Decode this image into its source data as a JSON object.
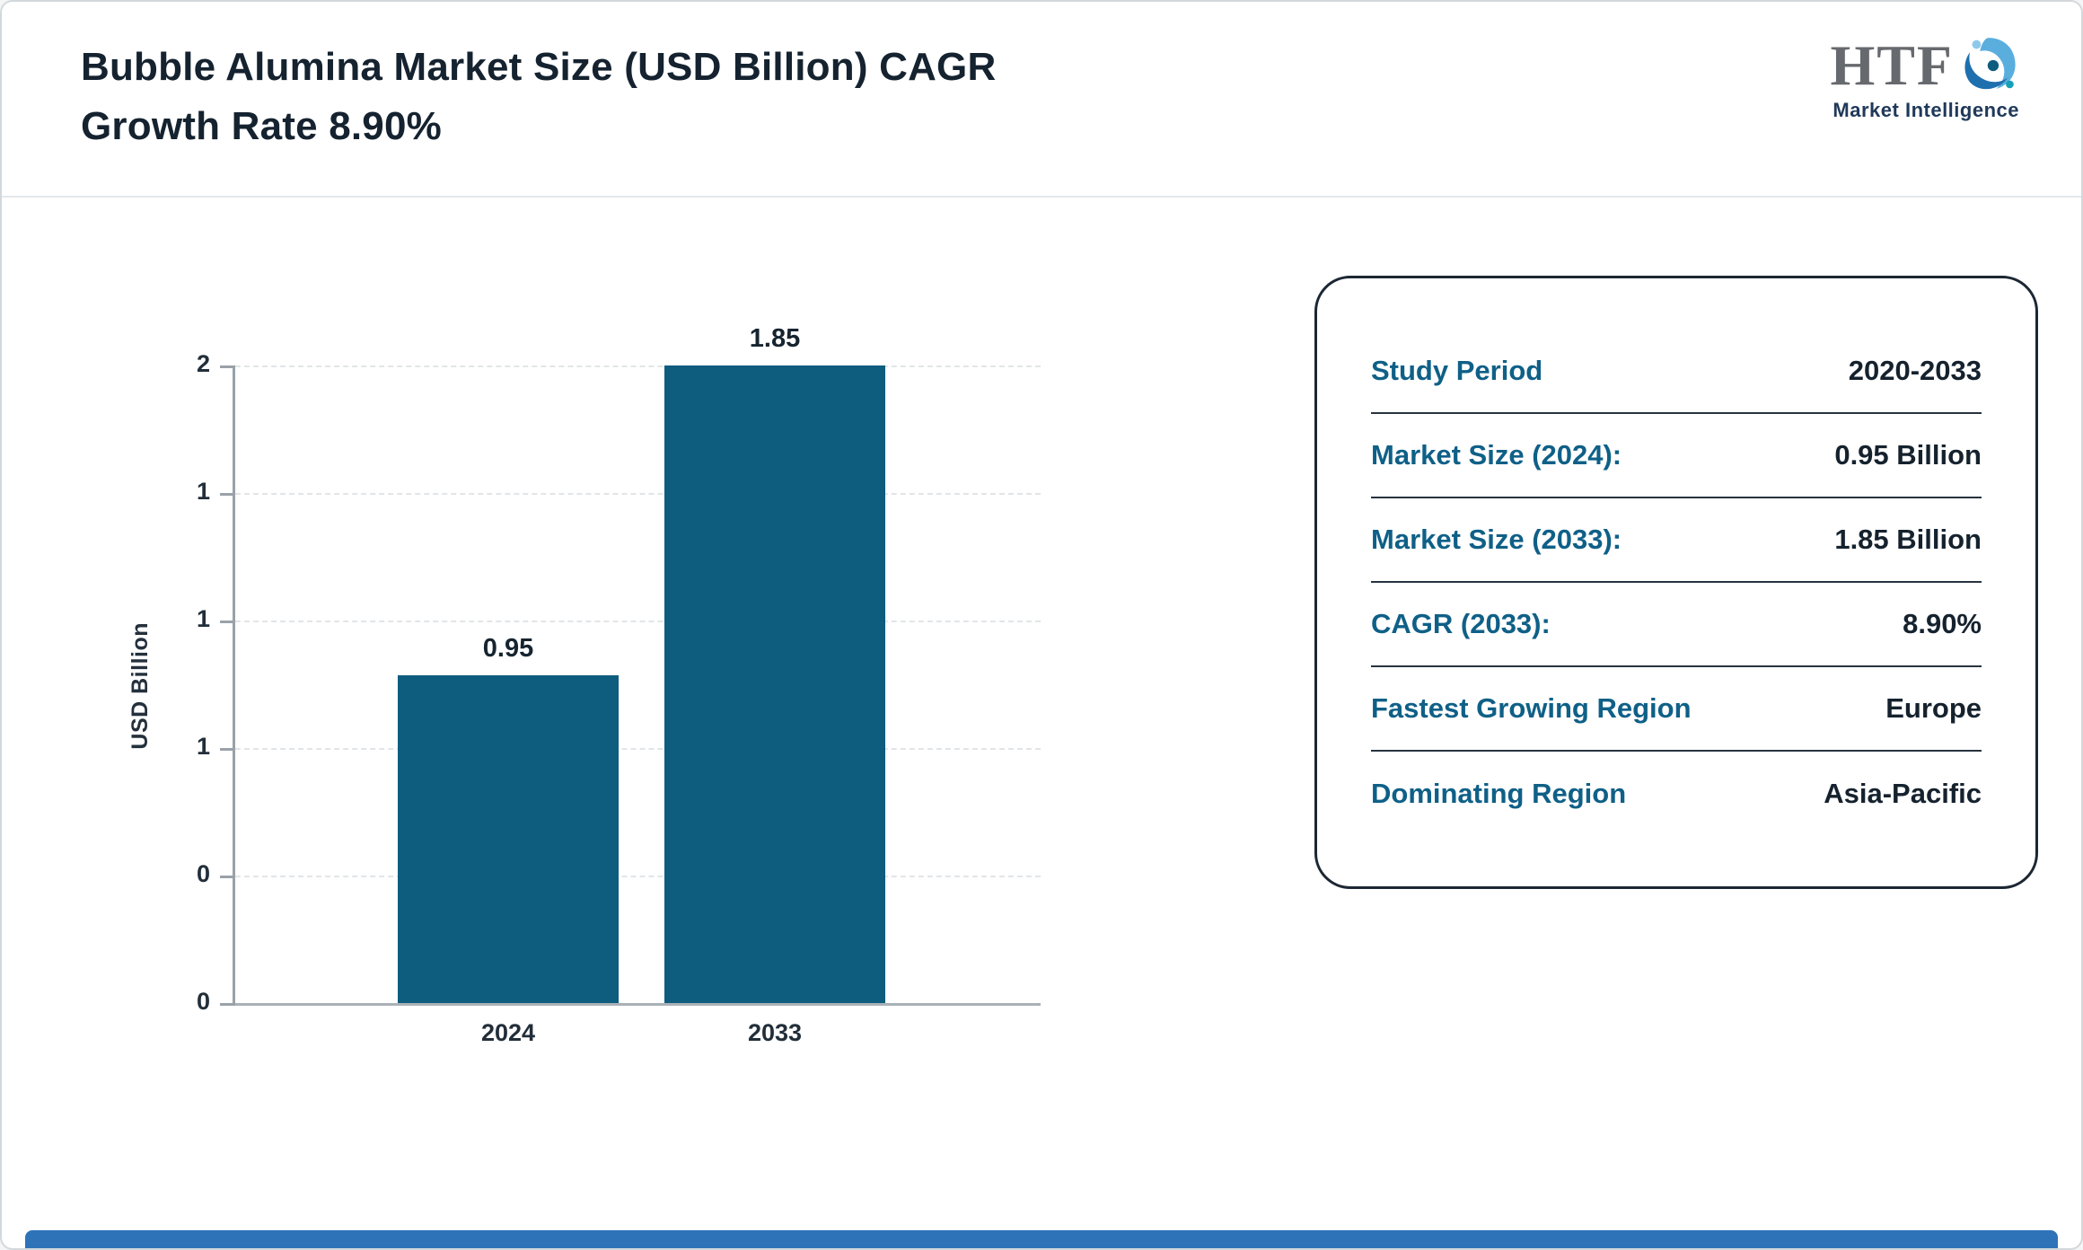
{
  "header": {
    "title_line1": "Bubble Alumina Market Size (USD Billion) CAGR",
    "title_line2": "Growth Rate 8.90%",
    "logo": {
      "text": "HTF",
      "subtext": "Market Intelligence"
    }
  },
  "chart_data": {
    "type": "bar",
    "title": "Bubble Alumina Market Size (USD Billion) CAGR Growth Rate 8.90%",
    "categories": [
      "2024",
      "2033"
    ],
    "values": [
      0.95,
      1.85
    ],
    "value_labels": [
      "0.95",
      "1.85"
    ],
    "xlabel": "",
    "ylabel": "USD Billion",
    "ylim": [
      0,
      1.85
    ],
    "ytick_labels_top_to_bottom": [
      "2",
      "1",
      "1",
      "1",
      "0",
      "0"
    ],
    "grid": true,
    "legend_position": "none",
    "bar_color": "#0e5d7e"
  },
  "info_panel": {
    "rows": [
      {
        "label": "Study Period",
        "value": "2020-2033"
      },
      {
        "label": "Market Size (2024):",
        "value": "0.95 Billion"
      },
      {
        "label": "Market Size (2033):",
        "value": "1.85 Billion"
      },
      {
        "label": "CAGR (2033):",
        "value": "8.90%"
      },
      {
        "label": "Fastest Growing Region",
        "value": "Europe"
      },
      {
        "label": "Dominating Region",
        "value": "Asia-Pacific"
      }
    ]
  },
  "colors": {
    "bar": "#0e5d7e",
    "info_label_teal": "#0f6087",
    "value_dark": "#15222e",
    "footer_bar": "#2e73b8",
    "title_text": "#15222f"
  }
}
